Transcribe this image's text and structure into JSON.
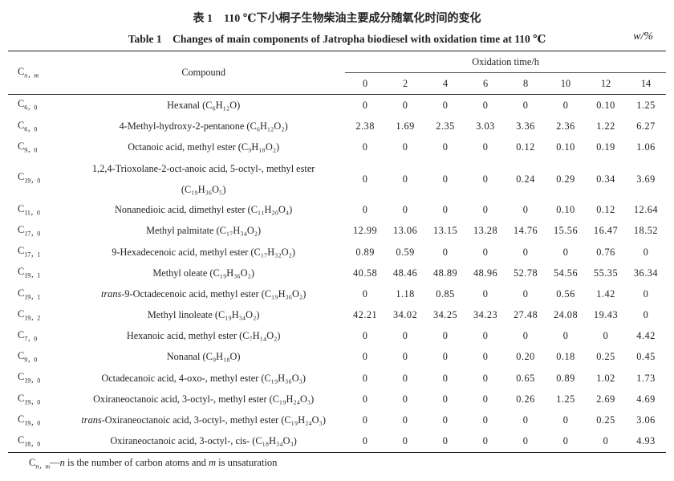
{
  "title_cn": "表 1　110 ℃下小桐子生物柴油主要成分随氧化时间的变化",
  "title_en": "Table 1　Changes of main components of Jatropha biodiesel with oxidation time at 110 ℃",
  "unit": "w/%",
  "header": {
    "cnm": "C",
    "cnm_sub": "n，m",
    "compound": "Compound",
    "oxidation": "Oxidation time/h",
    "times": [
      "0",
      "2",
      "4",
      "6",
      "8",
      "10",
      "12",
      "14"
    ]
  },
  "rows": [
    {
      "cnm": "6，0",
      "prefix": "",
      "name": "Hexanal",
      "formula": "(C₆H₁₂O)",
      "values": [
        "0",
        "0",
        "0",
        "0",
        "0",
        "0",
        "0.10",
        "1.25"
      ]
    },
    {
      "cnm": "6，0",
      "prefix": "",
      "name": "4-Methyl-hydroxy-2-pentanone",
      "formula": "(C₆H₁₂O₂)",
      "values": [
        "2.38",
        "1.69",
        "2.35",
        "3.03",
        "3.36",
        "2.36",
        "1.22",
        "6.27"
      ]
    },
    {
      "cnm": "9，0",
      "prefix": "",
      "name": "Octanoic acid, methyl ester",
      "formula": "(C₉H₁₈O₂)",
      "values": [
        "0",
        "0",
        "0",
        "0",
        "0.12",
        "0.10",
        "0.19",
        "1.06"
      ]
    },
    {
      "cnm": "19，0",
      "prefix": "",
      "name": "1,2,4-Trioxolane-2-oct-anoic acid, 5-octyl-, methyl ester",
      "formula": "(C₁₉H₃₆O₅)",
      "tall": true,
      "values": [
        "0",
        "0",
        "0",
        "0",
        "0.24",
        "0.29",
        "0.34",
        "3.69"
      ]
    },
    {
      "cnm": "11，0",
      "prefix": "",
      "name": "Nonanedioic acid, dimethyl ester",
      "formula": "(C₁₁H₂₀O₄)",
      "values": [
        "0",
        "0",
        "0",
        "0",
        "0",
        "0.10",
        "0.12",
        "12.64"
      ]
    },
    {
      "cnm": "17，0",
      "prefix": "",
      "name": "Methyl palmitate",
      "formula": "(C₁₇H₃₄O₂)",
      "values": [
        "12.99",
        "13.06",
        "13.15",
        "13.28",
        "14.76",
        "15.56",
        "16.47",
        "18.52"
      ]
    },
    {
      "cnm": "17，1",
      "prefix": "",
      "name": "9-Hexadecenoic acid, methyl ester",
      "formula": "(C₁₇H₃₂O₂)",
      "values": [
        "0.89",
        "0.59",
        "0",
        "0",
        "0",
        "0",
        "0.76",
        "0"
      ]
    },
    {
      "cnm": "19，1",
      "prefix": "",
      "name": "Methyl oleate",
      "formula": "(C₁₉H₃₆O₂)",
      "values": [
        "40.58",
        "48.46",
        "48.89",
        "48.96",
        "52.78",
        "54.56",
        "55.35",
        "36.34"
      ]
    },
    {
      "cnm": "19，1",
      "prefix": "trans",
      "name": "-9-Octadecenoic acid, methyl ester",
      "formula": "(C₁₉H₃₆O₂)",
      "values": [
        "0",
        "1.18",
        "0.85",
        "0",
        "0",
        "0.56",
        "1.42",
        "0"
      ]
    },
    {
      "cnm": "19，2",
      "prefix": "",
      "name": "Methyl linoleate",
      "formula": "(C₁₉H₃₄O₂)",
      "values": [
        "42.21",
        "34.02",
        "34.25",
        "34.23",
        "27.48",
        "24.08",
        "19.43",
        "0"
      ]
    },
    {
      "cnm": "7，0",
      "prefix": "",
      "name": "Hexanoic acid, methyl ester",
      "formula": "(C₇H₁₄O₂)",
      "values": [
        "0",
        "0",
        "0",
        "0",
        "0",
        "0",
        "0",
        "4.42"
      ]
    },
    {
      "cnm": "9，0",
      "prefix": "",
      "name": "Nonanal",
      "formula": "(C₉H₁₈O)",
      "values": [
        "0",
        "0",
        "0",
        "0",
        "0.20",
        "0.18",
        "0.25",
        "0.45"
      ]
    },
    {
      "cnm": "19，0",
      "prefix": "",
      "name": "Octadecanoic acid, 4-oxo-, methyl ester",
      "formula": "(C₁₉H₃₆O₃)",
      "values": [
        "0",
        "0",
        "0",
        "0",
        "0.65",
        "0.89",
        "1.02",
        "1.73"
      ]
    },
    {
      "cnm": "19，0",
      "prefix": "",
      "name": "Oxiraneoctanoic acid, 3-octyl-, methyl ester",
      "formula": "(C₁₉H₂₄O₃)",
      "values": [
        "0",
        "0",
        "0",
        "0",
        "0.26",
        "1.25",
        "2.69",
        "4.69"
      ]
    },
    {
      "cnm": "19，0",
      "prefix": "trans",
      "name": "-Oxiraneoctanoic acid, 3-octyl-, methyl ester",
      "formula": "(C₁₉H₂₄O₃)",
      "values": [
        "0",
        "0",
        "0",
        "0",
        "0",
        "0",
        "0.25",
        "3.06"
      ]
    },
    {
      "cnm": "18，0",
      "prefix": "",
      "name": "Oxiraneoctanoic acid, 3-octyl-, cis-",
      "formula": "(C₁₈H₃₄O₃)",
      "values": [
        "0",
        "0",
        "0",
        "0",
        "0",
        "0",
        "0",
        "4.93"
      ]
    }
  ],
  "footnote": {
    "c": "C",
    "sub": "n，m",
    "dash": "—",
    "n": "n",
    "text1": " is the number of carbon atoms and ",
    "m": "m",
    "text2": " is unsaturation"
  }
}
